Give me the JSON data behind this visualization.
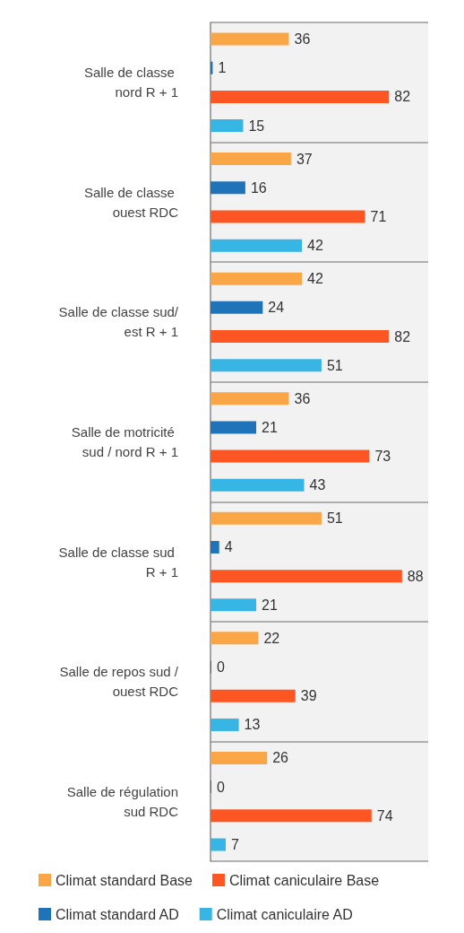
{
  "chart_data": {
    "type": "bar",
    "orientation": "horizontal",
    "categories": [
      "Salle de classe nord R + 1",
      "Salle de classe ouest RDC",
      "Salle de classe sud/est R + 1",
      "Salle de motricité sud / nord R + 1",
      "Salle de classe sud R + 1",
      "Salle de repos sud / ouest RDC",
      "Salle de régulation sud RDC"
    ],
    "series": [
      {
        "name": "Climat standard Base",
        "color": "#fba646",
        "values": [
          36,
          37,
          42,
          36,
          51,
          22,
          26
        ]
      },
      {
        "name": "Climat standard AD",
        "color": "#1f73b9",
        "values": [
          1,
          16,
          24,
          21,
          4,
          0,
          0
        ]
      },
      {
        "name": "Climat caniculaire Base",
        "color": "#fe5623",
        "values": [
          82,
          71,
          82,
          73,
          88,
          39,
          74
        ]
      },
      {
        "name": "Climat caniculaire AD",
        "color": "#37b5e5",
        "values": [
          15,
          42,
          51,
          43,
          21,
          13,
          7
        ]
      }
    ],
    "data_labels": true,
    "grid": "y",
    "legend": "bottom",
    "tick_labels": "y"
  }
}
